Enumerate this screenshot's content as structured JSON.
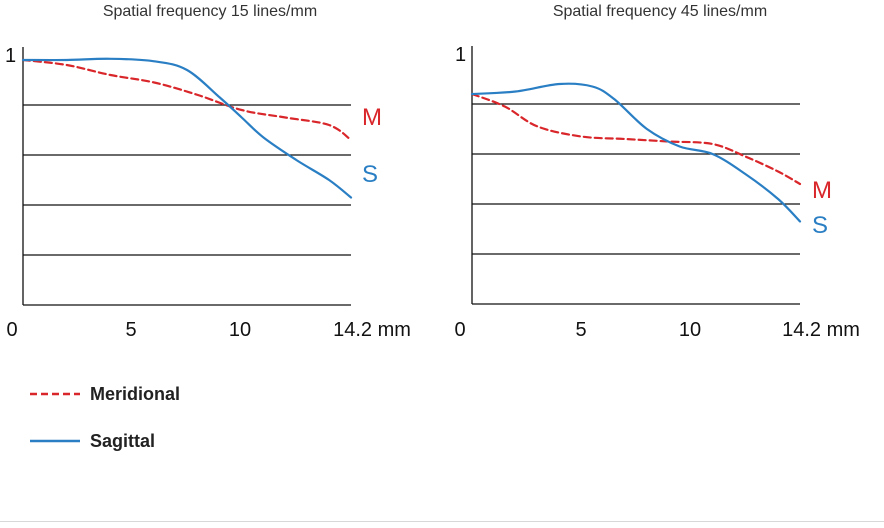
{
  "colors": {
    "meridional": "#d9262a",
    "sagittal": "#2a7fc4",
    "axis": "#111111"
  },
  "legend": {
    "meridional_label": "Meridional",
    "sagittal_label": "Sagittal"
  },
  "chart_data": [
    {
      "type": "line",
      "title": "Spatial frequency 15 lines/mm",
      "xlabel": "mm",
      "x_ticks": [
        "0",
        "5",
        "10",
        "14.2 mm"
      ],
      "x_tick_values": [
        0,
        5,
        10,
        14.2
      ],
      "y_tick_label": "1",
      "xlim": [
        0,
        15
      ],
      "ylim": [
        0,
        1
      ],
      "grid_y": [
        0.2,
        0.4,
        0.6,
        0.8
      ],
      "series": [
        {
          "name": "Meridional",
          "short": "M",
          "style": "dashed",
          "x": [
            0,
            2,
            4,
            6,
            8,
            10,
            12,
            14,
            15
          ],
          "y": [
            0.98,
            0.96,
            0.92,
            0.89,
            0.84,
            0.78,
            0.75,
            0.72,
            0.66
          ]
        },
        {
          "name": "Sagittal",
          "short": "S",
          "style": "solid",
          "x": [
            0,
            2,
            4,
            6,
            7.5,
            9,
            10,
            11,
            12.5,
            14,
            15
          ],
          "y": [
            0.98,
            0.98,
            0.985,
            0.975,
            0.94,
            0.83,
            0.75,
            0.67,
            0.58,
            0.5,
            0.43
          ]
        }
      ]
    },
    {
      "type": "line",
      "title": "Spatial frequency 45 lines/mm",
      "xlabel": "mm",
      "x_ticks": [
        "0",
        "5",
        "10",
        "14.2 mm"
      ],
      "x_tick_values": [
        0,
        5,
        10,
        14.2
      ],
      "y_tick_label": "1",
      "xlim": [
        0,
        15
      ],
      "ylim": [
        0,
        1
      ],
      "grid_y": [
        0.2,
        0.4,
        0.6,
        0.8
      ],
      "series": [
        {
          "name": "Meridional",
          "short": "M",
          "style": "dashed",
          "x": [
            0,
            1.5,
            3,
            5,
            7,
            9,
            11,
            12.5,
            14,
            15
          ],
          "y": [
            0.84,
            0.79,
            0.71,
            0.67,
            0.66,
            0.65,
            0.64,
            0.59,
            0.53,
            0.48
          ]
        },
        {
          "name": "Sagittal",
          "short": "S",
          "style": "solid",
          "x": [
            0,
            2,
            4,
            5.5,
            6.5,
            8,
            9.5,
            11,
            12.5,
            14,
            15
          ],
          "y": [
            0.84,
            0.85,
            0.88,
            0.87,
            0.82,
            0.7,
            0.63,
            0.6,
            0.52,
            0.42,
            0.33
          ]
        }
      ]
    }
  ]
}
